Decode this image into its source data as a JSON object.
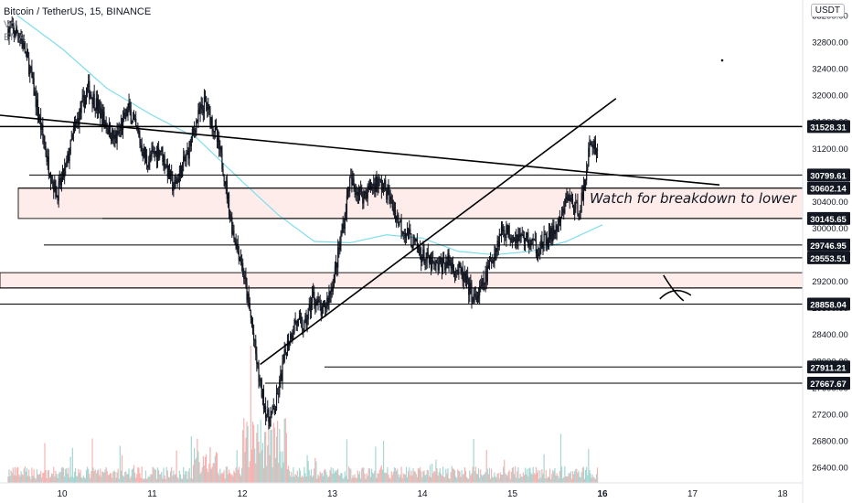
{
  "header": {
    "symbol_line": "Bitcoin / TetherUS, 15, BINANCE",
    "sub1": "Vol",
    "sub2": "EMA",
    "currency_button": "USDT"
  },
  "annotation_text": "Watch for breakdown to lower",
  "colors": {
    "up": "#26a69a",
    "down": "#ef5350",
    "candle": "#131722",
    "ema": "#80deea",
    "zone": "#fdecea",
    "line": "#000000"
  },
  "chart_data": {
    "type": "candlestick",
    "x_axis": {
      "ticks": [
        "10",
        "11",
        "12",
        "13",
        "14",
        "15",
        "16",
        "17",
        "18"
      ],
      "highlighted": "16"
    },
    "y_axis": {
      "ticks": [
        26400,
        26800,
        27200,
        27600,
        28000,
        28400,
        28800,
        29200,
        29600,
        30000,
        30400,
        30800,
        31200,
        31600,
        32000,
        32400,
        32800,
        33200
      ],
      "range": [
        26250,
        33350
      ]
    },
    "horizontal_levels": [
      31528.31,
      30799.61,
      30602.14,
      30145.65,
      29746.95,
      29553.51,
      28858.04,
      27911.21,
      27667.67
    ],
    "zones": [
      [
        30145.65,
        30602.14
      ],
      [
        29100,
        29330
      ]
    ],
    "price_path": [
      [
        9.4,
        33000
      ],
      [
        9.55,
        32900
      ],
      [
        9.65,
        32400
      ],
      [
        9.75,
        31700
      ],
      [
        9.85,
        31000
      ],
      [
        9.95,
        30500
      ],
      [
        10.05,
        30900
      ],
      [
        10.15,
        31500
      ],
      [
        10.3,
        32100
      ],
      [
        10.45,
        31700
      ],
      [
        10.6,
        31300
      ],
      [
        10.75,
        31800
      ],
      [
        10.95,
        31000
      ],
      [
        11.1,
        31200
      ],
      [
        11.25,
        30600
      ],
      [
        11.4,
        31100
      ],
      [
        11.5,
        31600
      ],
      [
        11.6,
        31900
      ],
      [
        11.7,
        31500
      ],
      [
        11.8,
        30900
      ],
      [
        11.9,
        30000
      ],
      [
        12.0,
        29500
      ],
      [
        12.1,
        28700
      ],
      [
        12.2,
        27700
      ],
      [
        12.3,
        27100
      ],
      [
        12.38,
        27300
      ],
      [
        12.5,
        28200
      ],
      [
        12.6,
        28600
      ],
      [
        12.7,
        28500
      ],
      [
        12.8,
        29000
      ],
      [
        12.9,
        28700
      ],
      [
        13.0,
        29100
      ],
      [
        13.05,
        29400
      ],
      [
        13.15,
        30200
      ],
      [
        13.2,
        30700
      ],
      [
        13.35,
        30500
      ],
      [
        13.5,
        30700
      ],
      [
        13.6,
        30600
      ],
      [
        13.75,
        30100
      ],
      [
        13.9,
        29800
      ],
      [
        14.0,
        29600
      ],
      [
        14.15,
        29400
      ],
      [
        14.3,
        29500
      ],
      [
        14.45,
        29300
      ],
      [
        14.6,
        28900
      ],
      [
        14.7,
        29200
      ],
      [
        14.8,
        29600
      ],
      [
        14.9,
        30000
      ],
      [
        15.0,
        29900
      ],
      [
        15.15,
        29850
      ],
      [
        15.3,
        29700
      ],
      [
        15.45,
        29900
      ],
      [
        15.55,
        30100
      ],
      [
        15.62,
        30500
      ],
      [
        15.72,
        30250
      ],
      [
        15.8,
        30500
      ],
      [
        15.85,
        31100
      ],
      [
        15.9,
        31300
      ],
      [
        15.95,
        31200
      ]
    ],
    "ema_path": [
      [
        9.5,
        33200
      ],
      [
        10.0,
        32700
      ],
      [
        10.5,
        32100
      ],
      [
        11.0,
        31700
      ],
      [
        11.5,
        31350
      ],
      [
        12.0,
        30700
      ],
      [
        12.4,
        30200
      ],
      [
        12.8,
        29800
      ],
      [
        13.2,
        29780
      ],
      [
        13.6,
        29900
      ],
      [
        14.0,
        29850
      ],
      [
        14.4,
        29650
      ],
      [
        14.8,
        29600
      ],
      [
        15.2,
        29650
      ],
      [
        15.6,
        29800
      ],
      [
        16.0,
        30050
      ]
    ],
    "trendlines": [
      [
        [
          9.3,
          31700
        ],
        [
          17.3,
          30650
        ]
      ],
      [
        [
          12.2,
          27950
        ],
        [
          16.15,
          31950
        ]
      ]
    ],
    "x_mark": [
      16.8,
      29100
    ]
  }
}
